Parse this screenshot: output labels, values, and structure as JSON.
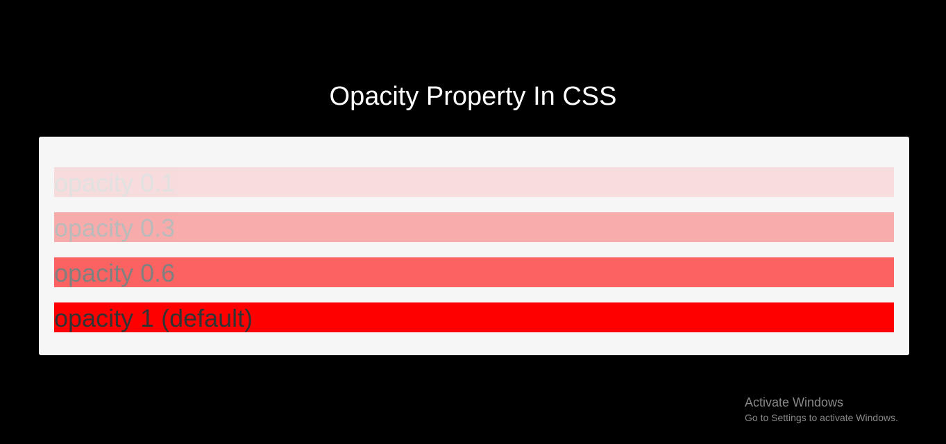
{
  "title": "Opacity Property In CSS",
  "bars": [
    {
      "label": "opacity 0.1",
      "opacity": 0.1
    },
    {
      "label": "opacity 0.3",
      "opacity": 0.3
    },
    {
      "label": "opacity 0.6",
      "opacity": 0.6
    },
    {
      "label": "opacity 1 (default)",
      "opacity": 1
    }
  ],
  "colors": {
    "bar": "#ff0000",
    "panel": "#f6f6f6",
    "background": "#000000"
  },
  "watermark": {
    "line1": "Activate Windows",
    "line2": "Go to Settings to activate Windows."
  }
}
